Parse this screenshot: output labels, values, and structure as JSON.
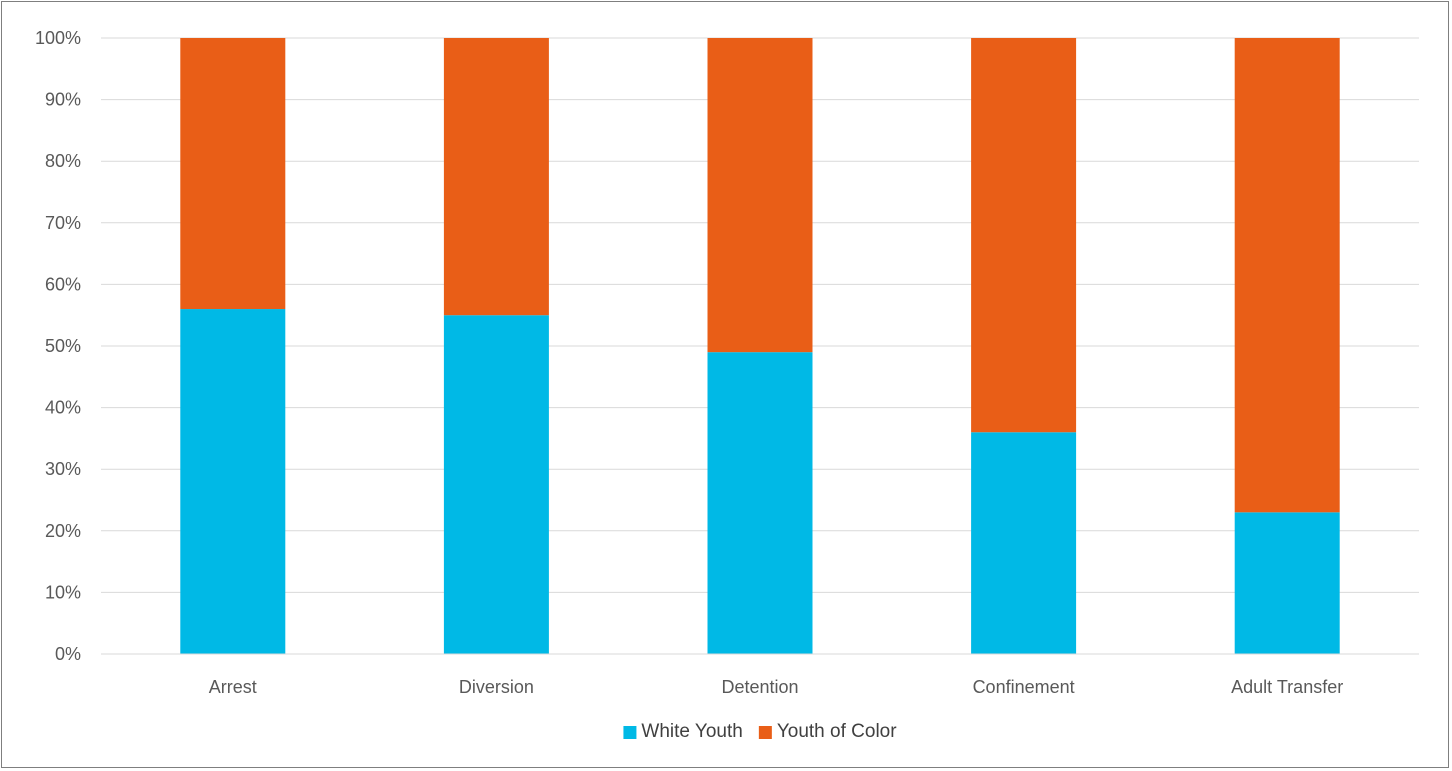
{
  "chart_data": {
    "type": "bar",
    "stacked": true,
    "categories": [
      "Arrest",
      "Diversion",
      "Detention",
      "Confinement",
      "Adult Transfer"
    ],
    "series": [
      {
        "name": "White Youth",
        "color": "#00b9e6",
        "values": [
          56,
          55,
          49,
          36,
          23
        ]
      },
      {
        "name": "Youth of Color",
        "color": "#e95e17",
        "values": [
          44,
          45,
          51,
          64,
          77
        ]
      }
    ],
    "yticks": [
      "0%",
      "10%",
      "20%",
      "30%",
      "40%",
      "50%",
      "60%",
      "70%",
      "80%",
      "90%",
      "100%"
    ],
    "ylim": [
      0,
      100
    ],
    "grid": true,
    "legend": "bottom",
    "title": "",
    "xlabel": "",
    "ylabel": ""
  }
}
